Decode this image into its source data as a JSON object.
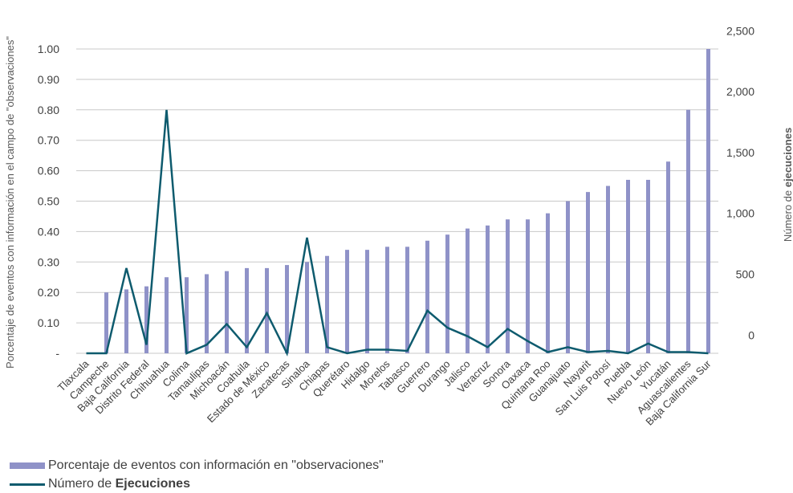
{
  "chart_data": {
    "type": "bar+line",
    "categories": [
      "Tlaxcala",
      "Campeche",
      "Baja California",
      "Distrito Federal",
      "Chihuahua",
      "Colima",
      "Tamaulipas",
      "Michoacán",
      "Coahuila",
      "Estado de México",
      "Zacatecas",
      "Sinaloa",
      "Chiapas",
      "Querétaro",
      "Hidalgo",
      "Morelos",
      "Tabasco",
      "Guerrero",
      "Durango",
      "Jalisco",
      "Veracruz",
      "Sonora",
      "Oaxaca",
      "Quintana Roo",
      "Guanajuato",
      "Nayarit",
      "San Luis Potosí",
      "Puebla",
      "Nuevo León",
      "Yucatán",
      "Aguascalientes",
      "Baja California Sur"
    ],
    "series": [
      {
        "name": "Porcentaje de eventos con información en \"observaciones\"",
        "type": "bar",
        "axis": "left",
        "color": "#8f92c8",
        "values": [
          0.0,
          0.2,
          0.21,
          0.22,
          0.25,
          0.25,
          0.26,
          0.27,
          0.28,
          0.28,
          0.29,
          0.3,
          0.32,
          0.34,
          0.34,
          0.35,
          0.35,
          0.37,
          0.39,
          0.41,
          0.42,
          0.44,
          0.44,
          0.46,
          0.5,
          0.53,
          0.55,
          0.57,
          0.57,
          0.63,
          0.8,
          1.0
        ]
      },
      {
        "name": "Número de Ejecuciones",
        "type": "line",
        "axis": "right",
        "color": "#0e5b6e",
        "values": [
          -150,
          -150,
          550,
          -80,
          1850,
          -150,
          -80,
          90,
          -100,
          180,
          -150,
          800,
          -100,
          -150,
          -120,
          -120,
          -130,
          200,
          60,
          -10,
          -100,
          50,
          -50,
          -140,
          -100,
          -140,
          -130,
          -150,
          -70,
          -140,
          -140,
          -150
        ]
      }
    ],
    "left_axis": {
      "title": "Porcentaje de eventos con información en el campo de \"observaciones\"",
      "ylim": [
        0,
        1.0
      ],
      "tick_labels": [
        "-",
        "0.10",
        "0.20",
        "0.30",
        "0.40",
        "0.50",
        "0.60",
        "0.70",
        "0.80",
        "0.90",
        "1.00"
      ]
    },
    "right_axis": {
      "title_prefix": "Número de ",
      "title_bold": "ejecuciones",
      "ylim": [
        -150,
        2350
      ],
      "ticks": [
        0,
        500,
        1000,
        1500,
        2000,
        2500
      ],
      "tick_labels": [
        "0",
        "500",
        "1,000",
        "1,500",
        "2,000",
        "2,500"
      ]
    },
    "grid": true,
    "legend": {
      "placement": "bottom-left",
      "bar_label": "Porcentaje de eventos con información en \"observaciones\"",
      "line_label_prefix": "Número de ",
      "line_label_bold": "Ejecuciones"
    }
  }
}
